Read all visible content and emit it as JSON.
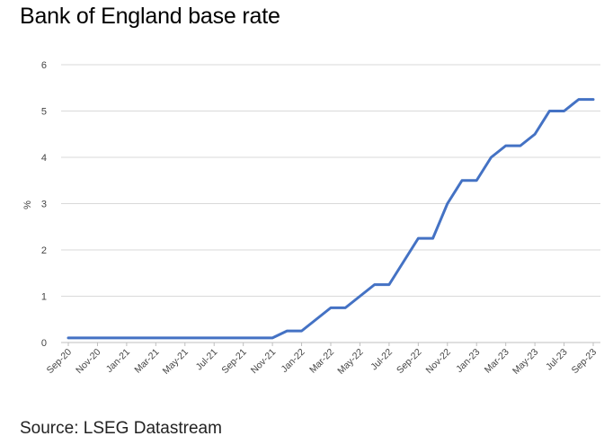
{
  "chart_data": {
    "type": "line",
    "title": "Bank of England base rate",
    "ylabel": "%",
    "xlabel": "",
    "ylim": [
      0,
      6
    ],
    "yticks": [
      0,
      1,
      2,
      3,
      4,
      5,
      6
    ],
    "grid": "horizontal",
    "source": "Source: LSEG Datastream",
    "series_color": "#4472C4",
    "xtick_labels": [
      "Sep-20",
      "Nov-20",
      "Jan-21",
      "Mar-21",
      "May-21",
      "Jul-21",
      "Sep-21",
      "Nov-21",
      "Jan-22",
      "Mar-22",
      "May-22",
      "Jul-22",
      "Sep-22",
      "Nov-22",
      "Jan-23",
      "Mar-23",
      "May-23",
      "Jul-23",
      "Sep-23"
    ],
    "x": [
      "Sep-20",
      "Oct-20",
      "Nov-20",
      "Dec-20",
      "Jan-21",
      "Feb-21",
      "Mar-21",
      "Apr-21",
      "May-21",
      "Jun-21",
      "Jul-21",
      "Aug-21",
      "Sep-21",
      "Oct-21",
      "Nov-21",
      "Dec-21",
      "Jan-22",
      "Feb-22",
      "Mar-22",
      "Apr-22",
      "May-22",
      "Jun-22",
      "Jul-22",
      "Aug-22",
      "Sep-22",
      "Oct-22",
      "Nov-22",
      "Dec-22",
      "Jan-23",
      "Feb-23",
      "Mar-23",
      "Apr-23",
      "May-23",
      "Jun-23",
      "Jul-23",
      "Aug-23",
      "Sep-23"
    ],
    "series": [
      {
        "values": [
          0.1,
          0.1,
          0.1,
          0.1,
          0.1,
          0.1,
          0.1,
          0.1,
          0.1,
          0.1,
          0.1,
          0.1,
          0.1,
          0.1,
          0.1,
          0.25,
          0.25,
          0.5,
          0.75,
          0.75,
          1.0,
          1.25,
          1.25,
          1.75,
          2.25,
          2.25,
          3.0,
          3.5,
          3.5,
          4.0,
          4.25,
          4.25,
          4.5,
          5.0,
          5.0,
          5.25,
          5.25
        ]
      }
    ]
  }
}
